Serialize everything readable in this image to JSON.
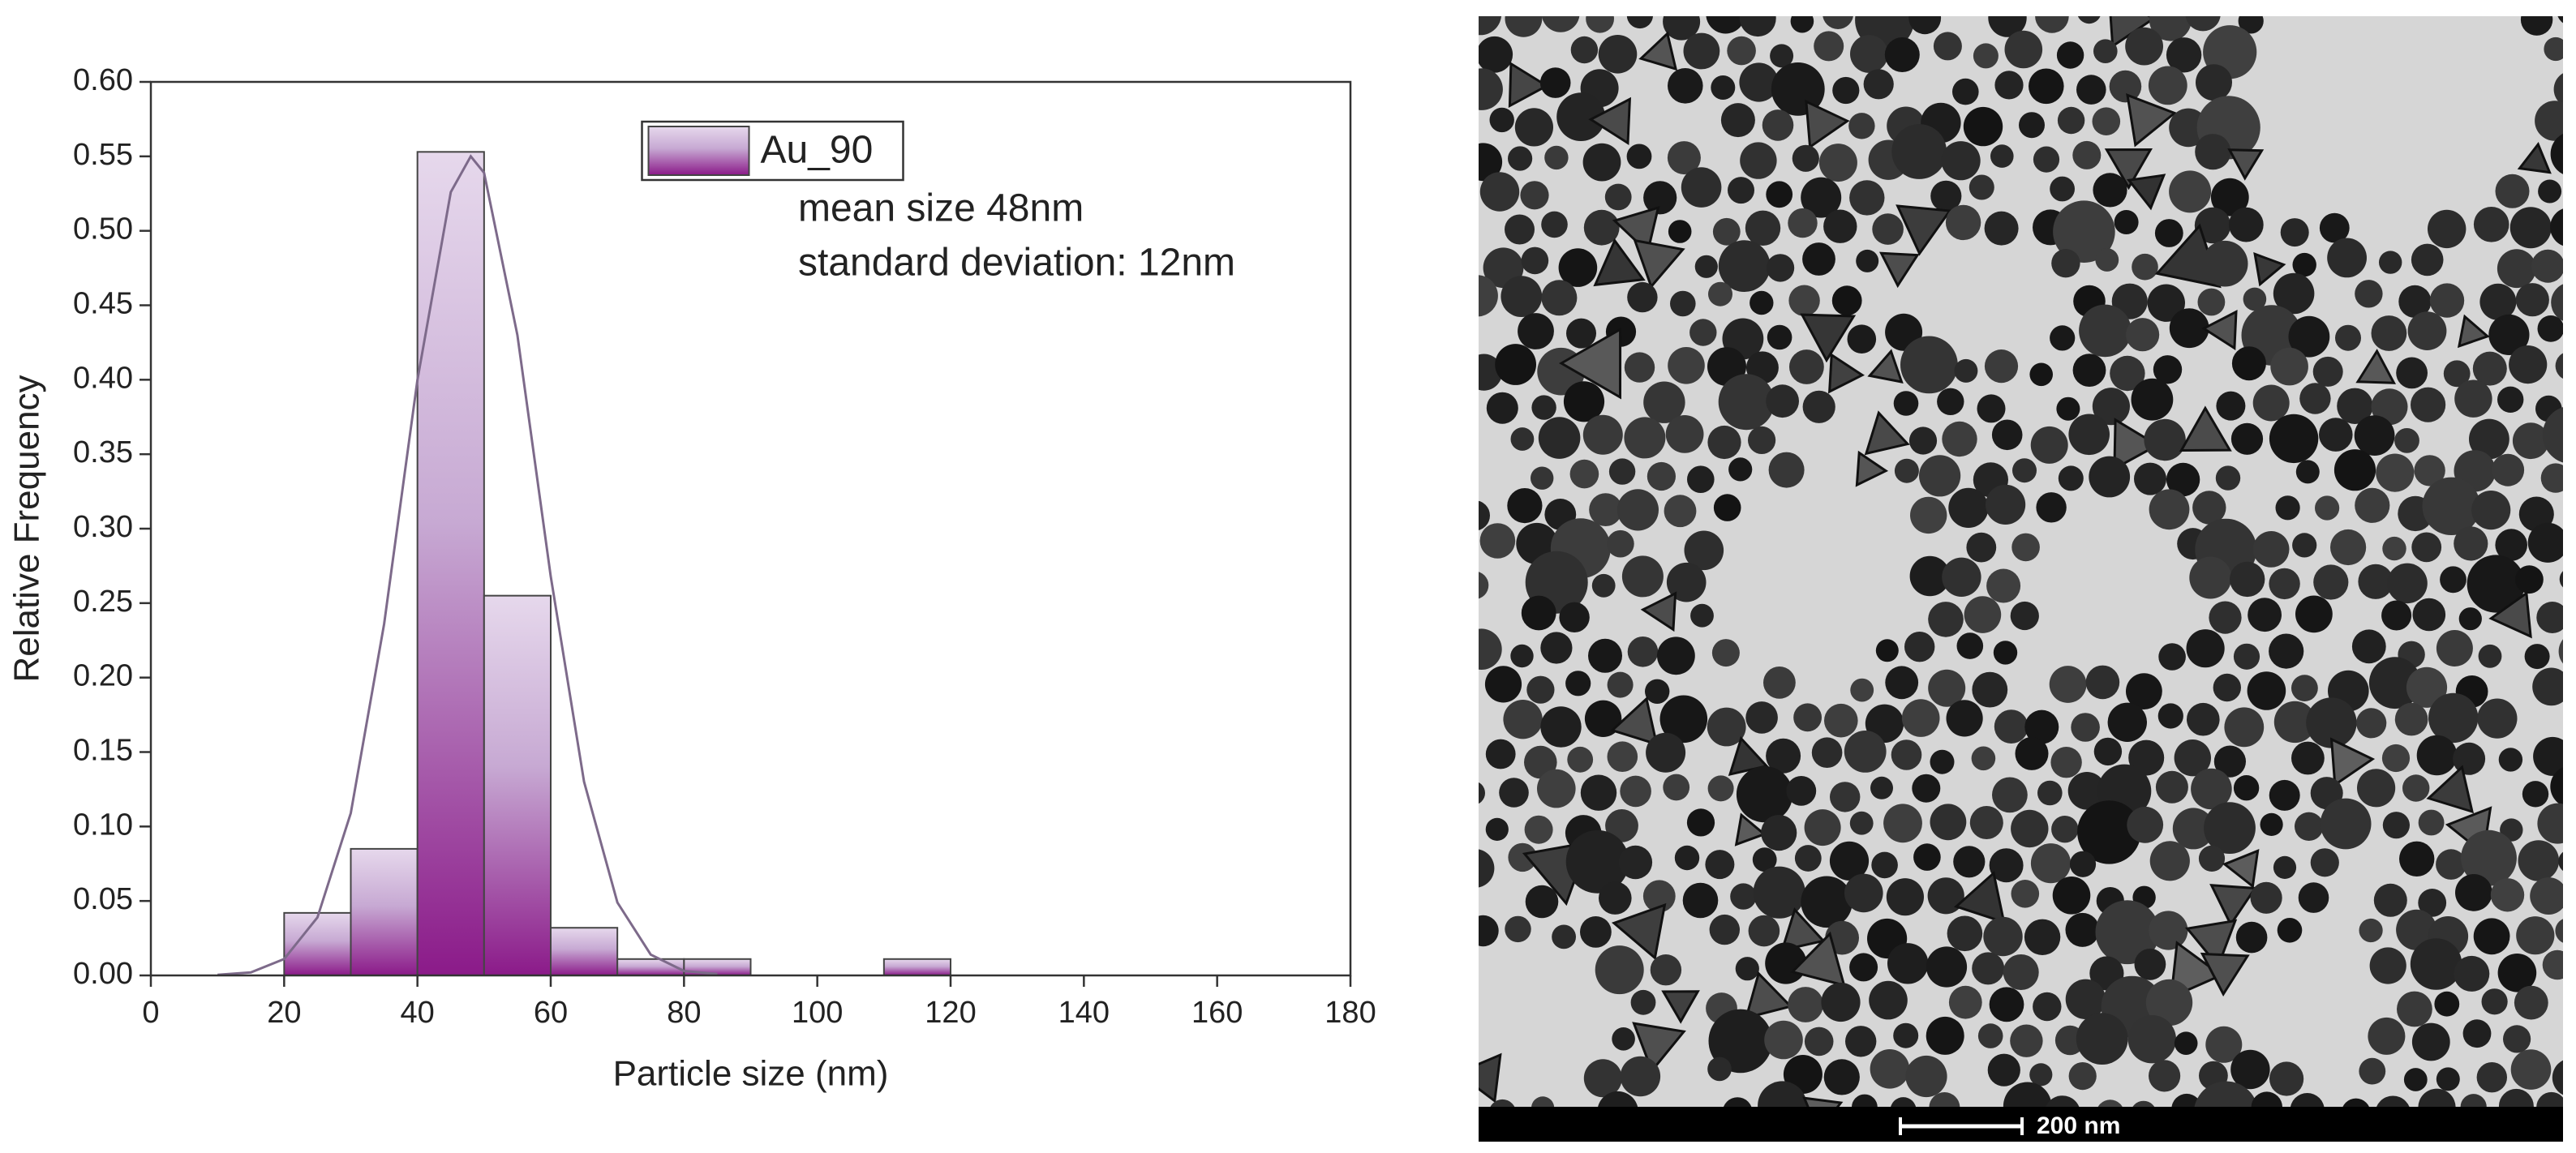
{
  "chart_data": {
    "type": "histogram",
    "name": "Au_90",
    "color": "#8b1a89",
    "bins": [
      20,
      30,
      40,
      50,
      60,
      70,
      80,
      90,
      100,
      110,
      120
    ],
    "values": [
      0.042,
      0.085,
      0.553,
      0.255,
      0.032,
      0.011,
      0.011,
      0,
      0,
      0.011
    ],
    "fit": {
      "color": "#7d6a8a",
      "x": [
        10,
        15,
        20,
        25,
        30,
        35,
        40,
        45,
        48,
        50,
        55,
        60,
        65,
        70,
        75,
        80,
        85
      ],
      "values": [
        0.0004,
        0.002,
        0.011,
        0.039,
        0.109,
        0.236,
        0.4,
        0.526,
        0.55,
        0.539,
        0.43,
        0.268,
        0.13,
        0.049,
        0.014,
        0.003,
        0.001
      ]
    },
    "annotations": [
      "mean size  48nm",
      "standard deviation: 12nm"
    ],
    "xlabel": "Particle size (nm)",
    "ylabel": "Relative Frequency",
    "xlim": [
      0,
      180
    ],
    "xticks": [
      0,
      20,
      40,
      60,
      80,
      100,
      120,
      140,
      160,
      180
    ],
    "ylim": [
      0,
      0.6
    ],
    "yticks": [
      {
        "value": 0,
        "label": "0.00"
      },
      {
        "value": 0.05,
        "label": "0.05"
      },
      {
        "value": 0.1,
        "label": "0.10"
      },
      {
        "value": 0.15,
        "label": "0.15"
      },
      {
        "value": 0.2,
        "label": "0.20"
      },
      {
        "value": 0.25,
        "label": "0.25"
      },
      {
        "value": 0.3,
        "label": "0.30"
      },
      {
        "value": 0.35,
        "label": "0.35"
      },
      {
        "value": 0.4,
        "label": "0.40"
      },
      {
        "value": 0.45,
        "label": "0.45"
      },
      {
        "value": 0.5,
        "label": "0.50"
      },
      {
        "value": 0.55,
        "label": "0.55"
      },
      {
        "value": 0.6,
        "label": "0.60"
      }
    ],
    "legend": "upper center"
  },
  "tem_image": {
    "scale_label": "200 nm"
  }
}
